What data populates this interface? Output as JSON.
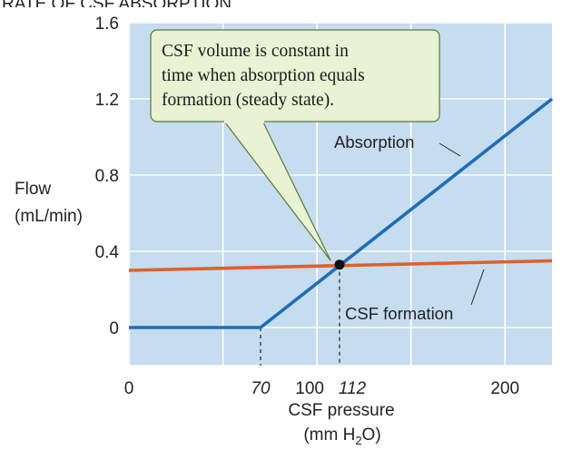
{
  "chart_data": {
    "type": "line",
    "title": "RATE OF CSF ABSORPTION",
    "ylabel_line1": "Flow",
    "ylabel_line2": "(mL/min)",
    "xlabel_line1": "CSF pressure",
    "xlabel_line2_pre": "(mm H",
    "xlabel_line2_sub": "2",
    "xlabel_line2_post": "O)",
    "xlim": [
      0,
      225
    ],
    "ylim": [
      -0.2,
      1.6
    ],
    "y_ticks": [
      0,
      0.4,
      0.8,
      1.2,
      1.6
    ],
    "y_tick_labels": [
      "0",
      "0.4",
      "0.8",
      "1.2",
      "1.6"
    ],
    "x_ticks": [
      0,
      70,
      100,
      112,
      200
    ],
    "x_tick_labels": [
      "0",
      "70",
      "100",
      "112",
      "200"
    ],
    "x_ticks_italic": [
      70,
      112
    ],
    "grid": true,
    "grid_x": [
      0,
      50,
      100,
      150,
      200
    ],
    "grid_y": [
      -0.2,
      0,
      0.4,
      0.8,
      1.2,
      1.6
    ],
    "series": [
      {
        "name": "Absorption",
        "color": "#1f6db5",
        "points": [
          [
            0,
            0
          ],
          [
            70,
            0
          ],
          [
            225,
            1.2
          ]
        ]
      },
      {
        "name": "CSF formation",
        "color": "#e0602a",
        "points": [
          [
            0,
            0.3
          ],
          [
            225,
            0.35
          ]
        ]
      }
    ],
    "steady_state_point": [
      112,
      0.33
    ],
    "dashed_guides_x": [
      70,
      112
    ],
    "annotation": [
      "CSF volume is constant in",
      "time when absorption equals",
      "formation (steady state)."
    ],
    "colors": {
      "plot_background": "#c6dcef",
      "grid": "#ffffff",
      "callout_fill": "#e9f2d2",
      "callout_stroke": "#5a7a3a"
    }
  }
}
